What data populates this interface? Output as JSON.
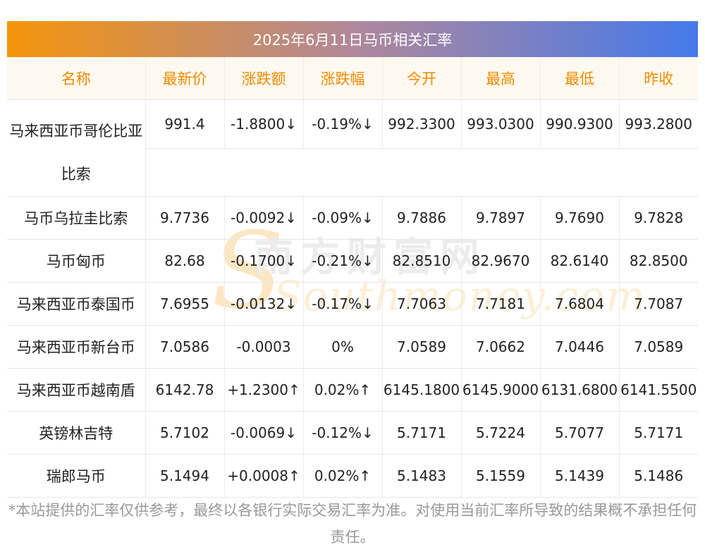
{
  "title": "2025年6月11日马币相关汇率",
  "columns": [
    "名称",
    "最新价",
    "涨跌额",
    "涨跌幅",
    "今开",
    "最高",
    "最低",
    "昨收"
  ],
  "rows": [
    {
      "name": "马来西亚币哥伦比亚比索",
      "latest": "991.4",
      "change": "-1.8800↓",
      "pct": "-0.19%↓",
      "open": "992.3300",
      "high": "993.0300",
      "low": "990.9300",
      "prev": "993.2800"
    },
    {
      "name": "马币乌拉圭比索",
      "latest": "9.7736",
      "change": "-0.0092↓",
      "pct": "-0.09%↓",
      "open": "9.7886",
      "high": "9.7897",
      "low": "9.7690",
      "prev": "9.7828"
    },
    {
      "name": "马币匈币",
      "latest": "82.68",
      "change": "-0.1700↓",
      "pct": "-0.21%↓",
      "open": "82.8510",
      "high": "82.9670",
      "low": "82.6140",
      "prev": "82.8500"
    },
    {
      "name": "马来西亚币泰国币",
      "latest": "7.6955",
      "change": "-0.0132↓",
      "pct": "-0.17%↓",
      "open": "7.7063",
      "high": "7.7181",
      "low": "7.6804",
      "prev": "7.7087"
    },
    {
      "name": "马来西亚币新台币",
      "latest": "7.0586",
      "change": "-0.0003",
      "pct": "0%",
      "open": "7.0589",
      "high": "7.0662",
      "low": "7.0446",
      "prev": "7.0589"
    },
    {
      "name": "马来西亚币越南盾",
      "latest": "6142.78",
      "change": "+1.2300↑",
      "pct": "0.02%↑",
      "open": "6145.1800",
      "high": "6145.9000",
      "low": "6131.6800",
      "prev": "6141.5500"
    },
    {
      "name": "英镑林吉特",
      "latest": "5.7102",
      "change": "-0.0069↓",
      "pct": "-0.12%↓",
      "open": "5.7171",
      "high": "5.7224",
      "low": "5.7077",
      "prev": "5.7171"
    },
    {
      "name": "瑞郎马币",
      "latest": "5.1494",
      "change": "+0.0008↑",
      "pct": "0.02%↑",
      "open": "5.1483",
      "high": "5.1559",
      "low": "5.1439",
      "prev": "5.1486"
    }
  ],
  "watermark": {
    "cn": "南方财富网",
    "en": "Southmoney.com"
  },
  "disclaimer": "*本站提供的汇率仅供参考，最终以各银行实际交易汇率为准。对使用当前汇率所导致的结果概不承担任何责任。",
  "colors": {
    "down": "#1a8a2a",
    "up": "#e02424",
    "header_text": "#f08a00",
    "gradient_start": "#f5950a",
    "gradient_end": "#4579ec"
  }
}
